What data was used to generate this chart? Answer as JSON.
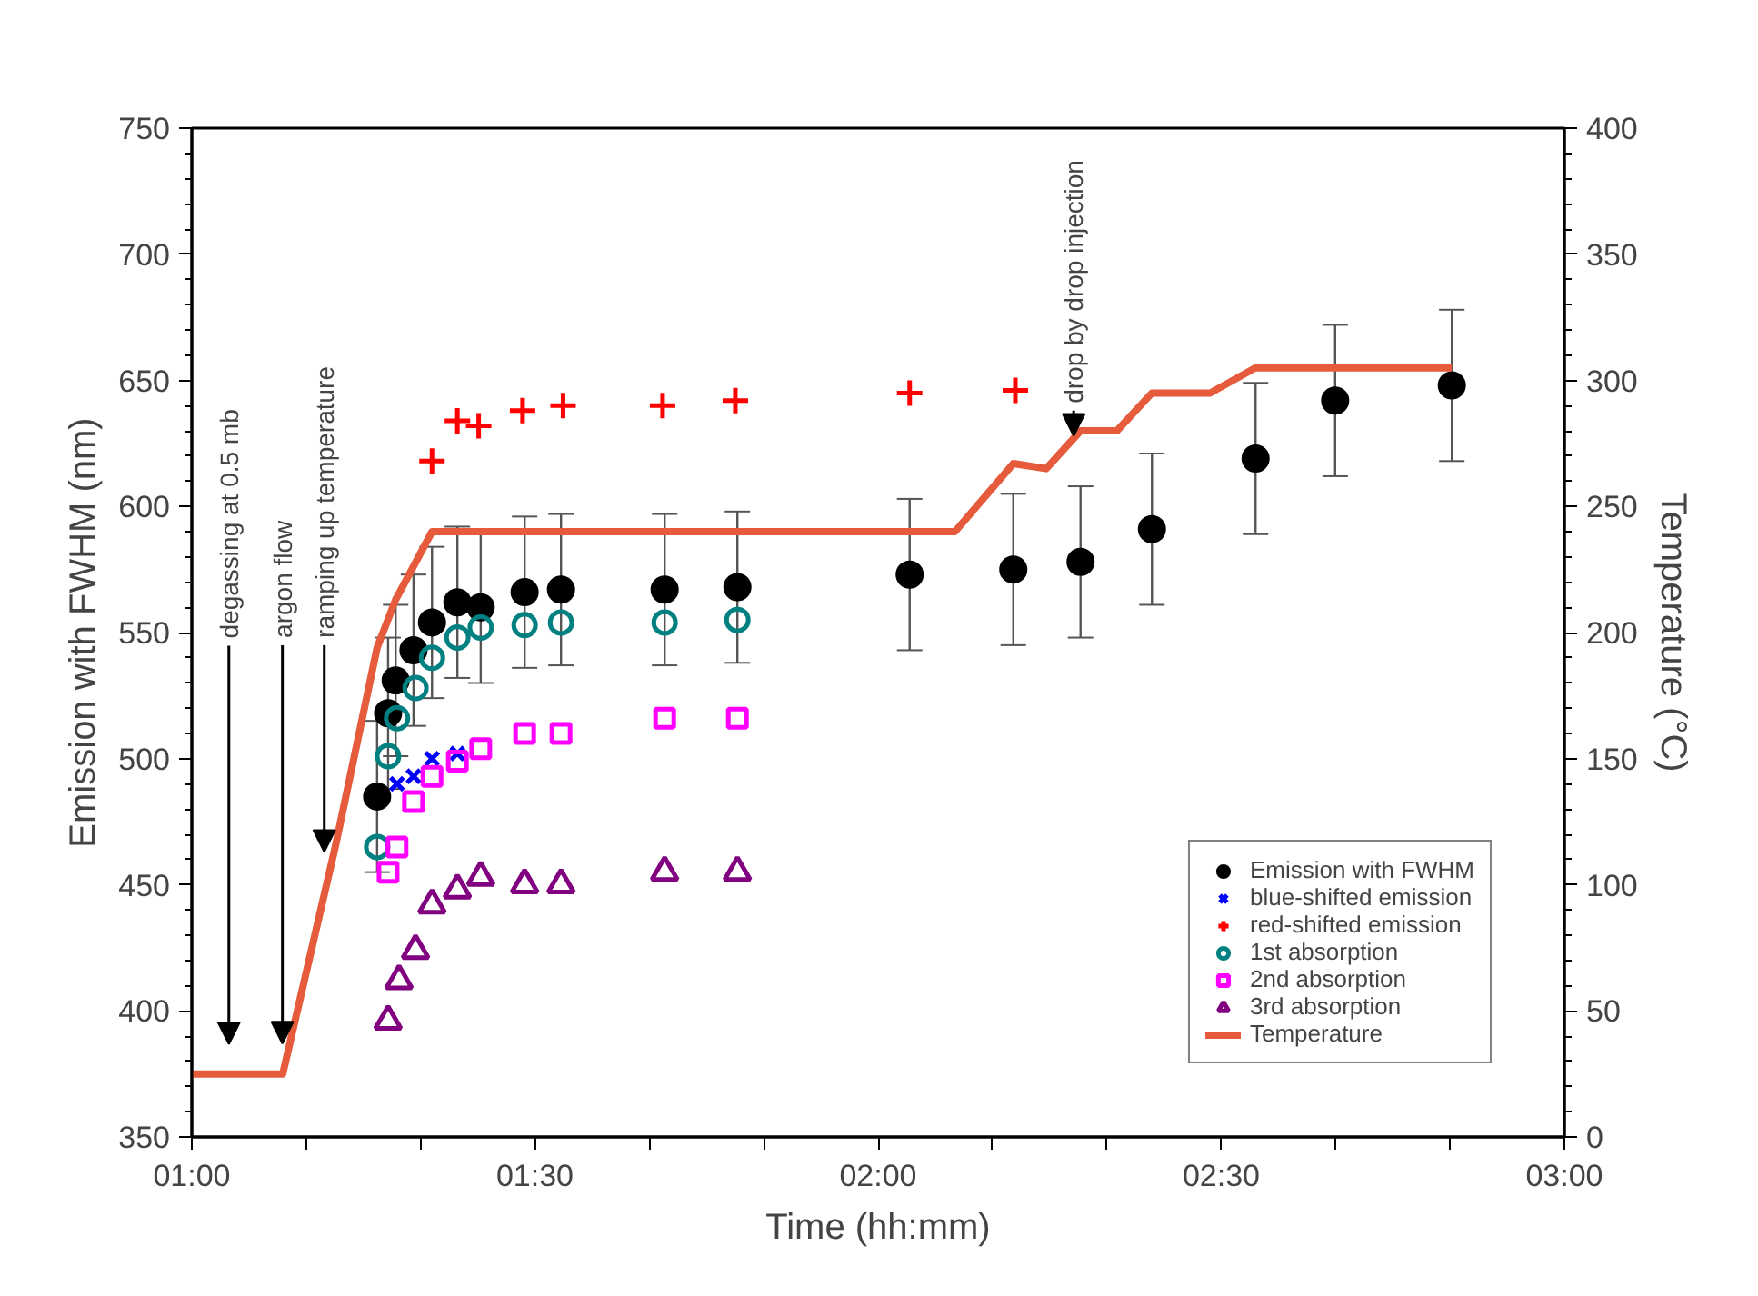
{
  "chart_data": {
    "type": "scatter",
    "xlabel": "Time (hh:mm)",
    "ylabel": "Emission with FWHM (nm)",
    "y2label": "Temperature (°C)",
    "xlim": [
      1,
      3
    ],
    "xticks": [
      {
        "value": 1,
        "label": "01:00"
      },
      {
        "value": 1.1667,
        "label": null
      },
      {
        "value": 1.3333,
        "label": null
      },
      {
        "value": 1.5,
        "label": "01:30"
      },
      {
        "value": 1.6667,
        "label": null
      },
      {
        "value": 1.8333,
        "label": null
      },
      {
        "value": 2,
        "label": "02:00"
      },
      {
        "value": 2.1667,
        "label": null
      },
      {
        "value": 2.3333,
        "label": null
      },
      {
        "value": 2.5,
        "label": "02:30"
      },
      {
        "value": 2.6667,
        "label": null
      },
      {
        "value": 2.8333,
        "label": null
      },
      {
        "value": 3,
        "label": "03:00"
      }
    ],
    "ylim": [
      350,
      750
    ],
    "yticks": [
      350,
      400,
      450,
      500,
      550,
      600,
      650,
      700,
      750
    ],
    "y2lim": [
      0,
      400
    ],
    "y2ticks": [
      0,
      50,
      100,
      150,
      200,
      250,
      300,
      350,
      400
    ],
    "grid": false,
    "legend": "bottom right",
    "series": [
      {
        "name": "Emission with FWHM",
        "marker": "circle",
        "color": "#000000",
        "x": [
          1.27,
          1.286,
          1.297,
          1.323,
          1.35,
          1.387,
          1.421,
          1.485,
          1.538,
          1.689,
          1.795,
          2.046,
          2.197,
          2.295,
          2.399,
          2.55,
          2.666,
          2.836
        ],
        "values": [
          485,
          518,
          531,
          543,
          554,
          562,
          560,
          566,
          567,
          567,
          568,
          573,
          575,
          578,
          591,
          619,
          642,
          648
        ],
        "errors": [
          30,
          30,
          30,
          30,
          30,
          30,
          30,
          30,
          30,
          30,
          30,
          30,
          30,
          30,
          30,
          30,
          30,
          30
        ]
      },
      {
        "name": "blue-shifted emission",
        "marker": "x",
        "color": "#0000ff",
        "x": [
          1.299,
          1.323,
          1.35,
          1.387
        ],
        "values": [
          490,
          493,
          500,
          502
        ]
      },
      {
        "name": "red-shifted emission",
        "marker": "cross",
        "color": "#ff0000",
        "x": [
          1.35,
          1.387,
          1.418,
          1.482,
          1.541,
          1.686,
          1.792,
          2.046,
          2.2
        ],
        "values": [
          618,
          634,
          632,
          638,
          640,
          640,
          642,
          645,
          646
        ]
      },
      {
        "name": "1st absorption",
        "marker": "circle_open",
        "color": "#008080",
        "x": [
          1.27,
          1.286,
          1.299,
          1.326,
          1.35,
          1.387,
          1.421,
          1.485,
          1.538,
          1.689,
          1.795
        ],
        "values": [
          465,
          501,
          516,
          528,
          540,
          548,
          552,
          553,
          554,
          554,
          555
        ]
      },
      {
        "name": "2nd absorption",
        "marker": "square_open",
        "color": "#ff00ff",
        "x": [
          1.286,
          1.299,
          1.323,
          1.35,
          1.387,
          1.421,
          1.485,
          1.538,
          1.689,
          1.795
        ],
        "values": [
          455,
          465,
          483,
          493,
          499,
          504,
          510,
          510,
          516,
          516
        ]
      },
      {
        "name": "3rd absorption",
        "marker": "triangle_open",
        "color": "#800080",
        "x": [
          1.286,
          1.302,
          1.326,
          1.35,
          1.387,
          1.421,
          1.485,
          1.538,
          1.689,
          1.795
        ],
        "values": [
          396,
          412,
          424,
          442,
          448,
          453,
          450,
          450,
          455,
          455
        ]
      },
      {
        "name": "Temperature",
        "type": "line",
        "axis": "y2",
        "color": "#e55b3c",
        "x": [
          1,
          1.1325,
          1.209,
          1.27,
          1.297,
          1.35,
          2.112,
          2.197,
          2.245,
          2.295,
          2.348,
          2.399,
          2.484,
          2.55,
          2.836
        ],
        "values": [
          25,
          25,
          115,
          194,
          213,
          240,
          240,
          267,
          265,
          280,
          280,
          295,
          295,
          305,
          305
        ]
      }
    ],
    "annotations": [
      "degassing at 0.5 mb",
      {
        "text": "argon flow",
        "x": 1.132,
        "y": 387
      },
      {
        "text": "ramping up temperature",
        "x": 1.193,
        "y": 463
      },
      {
        "text": "drop by drop injection",
        "x": 2.285,
        "y": 628
      }
    ]
  }
}
